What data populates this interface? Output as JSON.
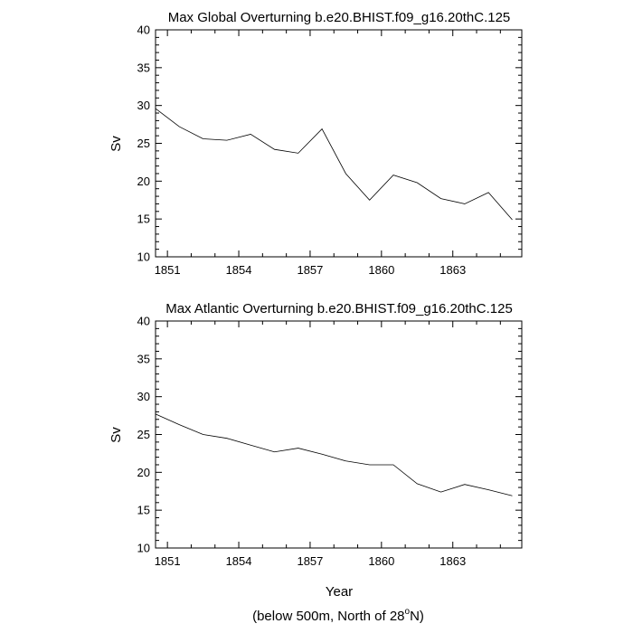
{
  "chart_data": [
    {
      "type": "line",
      "title": "Max Global Overturning b.e20.BHIST.f09_g16.20thC.125",
      "xlabel": "",
      "ylabel": "Sv",
      "xlim": [
        1850.5,
        1865.9
      ],
      "ylim": [
        10,
        40
      ],
      "xticks": [
        1851,
        1854,
        1857,
        1860,
        1863
      ],
      "yticks": [
        10,
        15,
        20,
        25,
        30,
        35,
        40
      ],
      "series": [
        {
          "name": "Max Global Overturning",
          "x": [
            1850.5,
            1851.5,
            1852.5,
            1853.5,
            1854.5,
            1855.5,
            1856.5,
            1857.5,
            1858.5,
            1859.5,
            1860.5,
            1861.5,
            1862.5,
            1863.5,
            1864.5,
            1865.5
          ],
          "y": [
            29.6,
            27.2,
            25.6,
            25.4,
            26.2,
            24.2,
            23.7,
            26.9,
            21.0,
            17.5,
            20.8,
            19.8,
            17.7,
            17.0,
            18.5,
            14.9
          ]
        }
      ]
    },
    {
      "type": "line",
      "title": "Max Atlantic Overturning b.e20.BHIST.f09_g16.20thC.125",
      "xlabel": "Year",
      "ylabel": "Sv",
      "xlim": [
        1850.5,
        1865.9
      ],
      "ylim": [
        10,
        40
      ],
      "xticks": [
        1851,
        1854,
        1857,
        1860,
        1863
      ],
      "yticks": [
        10,
        15,
        20,
        25,
        30,
        35,
        40
      ],
      "series": [
        {
          "name": "Max Atlantic Overturning",
          "x": [
            1850.5,
            1851.5,
            1852.5,
            1853.5,
            1854.5,
            1855.5,
            1856.5,
            1857.5,
            1858.5,
            1859.5,
            1860.5,
            1861.5,
            1862.5,
            1863.5,
            1864.5,
            1865.5
          ],
          "y": [
            27.7,
            26.3,
            25.0,
            24.5,
            23.6,
            22.7,
            23.2,
            22.4,
            21.5,
            21.0,
            21.0,
            18.5,
            17.4,
            18.4,
            17.7,
            16.9
          ]
        }
      ]
    }
  ],
  "footnote": {
    "prefix": "(below 500m, North of 28",
    "degree": "o",
    "suffix": "N)"
  }
}
